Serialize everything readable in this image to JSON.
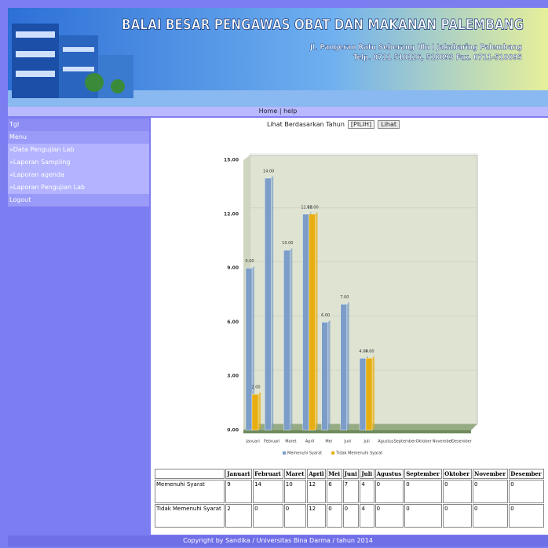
{
  "header": {
    "title": "BALAI BESAR PENGAWAS OBAT DAN MAKANAN PALEMBANG",
    "address": "Jl. Pangeran Ratu Seberang Ulu I Jakabaring Palembang",
    "phone": "Telp. 0711 510126, 510093 Fax. 0711-510095"
  },
  "nav": {
    "home": "Home",
    "separator": "|",
    "help": "help"
  },
  "sidebar": {
    "tgl": "Tgl",
    "menu_title": "Menu",
    "items": [
      "»Data Pengujian Lab",
      "»Laporan Sampling",
      "»Laporan agenda",
      "»Laporan Pengujian Lab"
    ],
    "logout": "Logout"
  },
  "filter": {
    "label": "Lihat Berdasarkan Tahun",
    "select": "[PILIH]",
    "button": "Lihat"
  },
  "chart_data": {
    "type": "bar",
    "categories": [
      "Januari",
      "Februari",
      "Maret",
      "April",
      "Mei",
      "Juni",
      "Juli",
      "Agustus",
      "September",
      "Oktober",
      "November",
      "Desember"
    ],
    "series": [
      {
        "name": "Memenuhi Syarat",
        "color": "#7b9dc8",
        "values": [
          9,
          14,
          10,
          12,
          6,
          7,
          4,
          0,
          0,
          0,
          0,
          0
        ],
        "value_labels": [
          "9.00",
          "14.00",
          "10.00",
          "12.00",
          "6.00",
          "7.00",
          "4.00",
          null,
          null,
          null,
          null,
          null
        ]
      },
      {
        "name": "Tidak Memenuhi Syarat",
        "color": "#e6ae10",
        "values": [
          2,
          0,
          0,
          12,
          0,
          0,
          4,
          0,
          0,
          0,
          0,
          0
        ],
        "value_labels": [
          "2.00",
          null,
          null,
          "12.00",
          null,
          null,
          "4.00",
          null,
          null,
          null,
          null,
          null
        ]
      }
    ],
    "ylim": [
      0,
      15
    ],
    "yticks": [
      {
        "value": 0,
        "label": "0.00"
      },
      {
        "value": 3,
        "label": "3.00"
      },
      {
        "value": 6,
        "label": "6.00"
      },
      {
        "value": 9,
        "label": "9.00"
      },
      {
        "value": 12,
        "label": "12.00"
      },
      {
        "value": 15,
        "label": "15.00"
      }
    ],
    "grid": true
  },
  "footer": "Copyright by Sandika / Universitas Bina Darma / tahun 2014"
}
